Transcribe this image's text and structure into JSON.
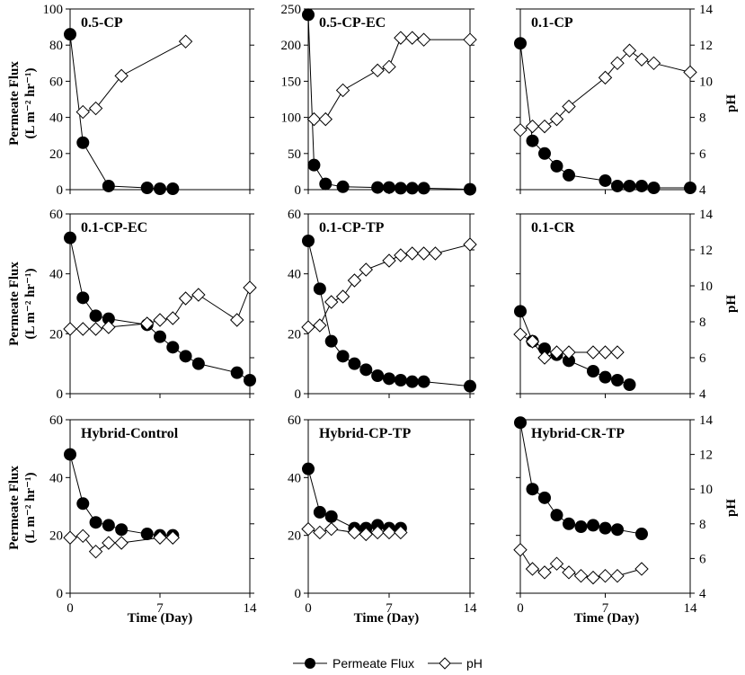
{
  "figure": {
    "y_label_left_line1": "Permeate Flux",
    "y_label_left_line2": "(L m⁻² hr⁻¹)",
    "y_label_right": "pH",
    "x_label": "Time (Day)",
    "legend": {
      "flux_label": "Permeate Flux",
      "ph_label": "pH"
    }
  },
  "chart_data": [
    {
      "type": "scatter",
      "title": "0.5-CP",
      "xlim": [
        0,
        14
      ],
      "ylim": [
        0,
        100
      ],
      "y2lim": [
        4,
        14
      ],
      "xticks": [
        0,
        7,
        14
      ],
      "yticks": [
        0,
        20,
        40,
        60,
        80,
        100
      ],
      "y2ticks": [
        4,
        6,
        8,
        10,
        12,
        14
      ],
      "series": [
        {
          "name": "Permeate Flux",
          "axis": "left",
          "x": [
            0,
            1,
            3,
            6,
            7,
            8
          ],
          "y": [
            86,
            26,
            2,
            1,
            0.5,
            0.5
          ]
        },
        {
          "name": "pH",
          "axis": "right",
          "x": [
            1,
            2,
            4,
            9
          ],
          "y": [
            8.3,
            8.5,
            10.3,
            12.2
          ]
        }
      ]
    },
    {
      "type": "scatter",
      "title": "0.5-CP-EC",
      "xlim": [
        0,
        14
      ],
      "ylim": [
        0,
        250
      ],
      "y2lim": [
        4,
        14
      ],
      "xticks": [
        0,
        7,
        14
      ],
      "yticks": [
        0,
        50,
        100,
        150,
        200,
        250
      ],
      "y2ticks": [
        4,
        6,
        8,
        10,
        12,
        14
      ],
      "series": [
        {
          "name": "Permeate Flux",
          "axis": "left",
          "x": [
            0,
            0.5,
            1.5,
            3,
            6,
            7,
            8,
            9,
            10,
            14
          ],
          "y": [
            242,
            34,
            8,
            4,
            3,
            3,
            2,
            2,
            2,
            0.5
          ]
        },
        {
          "name": "pH",
          "axis": "right",
          "x": [
            0.5,
            1.5,
            3,
            6,
            7,
            8,
            9,
            10,
            14
          ],
          "y": [
            7.9,
            7.9,
            9.5,
            10.6,
            10.8,
            12.4,
            12.4,
            12.3,
            12.3
          ]
        }
      ]
    },
    {
      "type": "scatter",
      "title": "0.1-CP",
      "xlim": [
        0,
        14
      ],
      "ylim": [
        0,
        100
      ],
      "y2lim": [
        4,
        14
      ],
      "xticks": [
        0,
        7,
        14
      ],
      "yticks": [
        0,
        20,
        40,
        60,
        80,
        100
      ],
      "y2ticks": [
        4,
        6,
        8,
        10,
        12,
        14
      ],
      "series": [
        {
          "name": "Permeate Flux",
          "axis": "left",
          "x": [
            0,
            1,
            2,
            3,
            4,
            7,
            8,
            9,
            10,
            11,
            14
          ],
          "y": [
            81,
            27,
            20,
            13,
            8,
            5,
            2,
            2,
            2,
            1,
            1
          ]
        },
        {
          "name": "pH",
          "axis": "right",
          "x": [
            0,
            1,
            2,
            3,
            4,
            7,
            8,
            9,
            10,
            11,
            14
          ],
          "y": [
            7.3,
            7.5,
            7.5,
            7.9,
            8.6,
            10.2,
            11,
            11.7,
            11.2,
            11,
            10.5
          ]
        }
      ]
    },
    {
      "type": "scatter",
      "title": "0.1-CP-EC",
      "xlim": [
        0,
        14
      ],
      "ylim": [
        0,
        60
      ],
      "y2lim": [
        4,
        14
      ],
      "xticks": [
        0,
        7,
        14
      ],
      "yticks": [
        0,
        20,
        40,
        60
      ],
      "y2ticks": [
        4,
        6,
        8,
        10,
        12,
        14
      ],
      "series": [
        {
          "name": "Permeate Flux",
          "axis": "left",
          "x": [
            0,
            1,
            2,
            3,
            6,
            7,
            8,
            9,
            10,
            13,
            14
          ],
          "y": [
            52,
            32,
            26,
            25,
            23,
            19,
            15.5,
            12.5,
            10,
            7,
            4.5
          ]
        },
        {
          "name": "pH",
          "axis": "right",
          "x": [
            0,
            1,
            2,
            3,
            6,
            7,
            8,
            9,
            10,
            13,
            14
          ],
          "y": [
            7.6,
            7.6,
            7.6,
            7.7,
            7.9,
            8.1,
            8.2,
            9.3,
            9.5,
            8.1,
            9.9
          ]
        }
      ]
    },
    {
      "type": "scatter",
      "title": "0.1-CP-TP",
      "xlim": [
        0,
        14
      ],
      "ylim": [
        0,
        60
      ],
      "y2lim": [
        4,
        14
      ],
      "xticks": [
        0,
        7,
        14
      ],
      "yticks": [
        0,
        20,
        40,
        60
      ],
      "y2ticks": [
        4,
        6,
        8,
        10,
        12,
        14
      ],
      "series": [
        {
          "name": "Permeate Flux",
          "axis": "left",
          "x": [
            0,
            1,
            2,
            3,
            4,
            5,
            6,
            7,
            8,
            9,
            10,
            14
          ],
          "y": [
            51,
            35,
            17.5,
            12.5,
            10,
            8,
            6,
            5,
            4.5,
            4,
            4,
            2.5
          ]
        },
        {
          "name": "pH",
          "axis": "right",
          "x": [
            0,
            1,
            2,
            3,
            4,
            5,
            7,
            8,
            9,
            10,
            11,
            14
          ],
          "y": [
            7.7,
            7.8,
            9.1,
            9.4,
            10.3,
            10.9,
            11.4,
            11.7,
            11.8,
            11.8,
            11.8,
            12.3
          ]
        }
      ]
    },
    {
      "type": "scatter",
      "title": "0.1-CR",
      "xlim": [
        0,
        14
      ],
      "ylim": [
        0,
        60
      ],
      "y2lim": [
        4,
        14
      ],
      "xticks": [
        0,
        7,
        14
      ],
      "yticks": [
        0,
        20,
        40,
        60
      ],
      "y2ticks": [
        4,
        6,
        8,
        10,
        12,
        14
      ],
      "series": [
        {
          "name": "Permeate Flux",
          "axis": "left",
          "x": [
            0,
            1,
            2,
            3,
            4,
            6,
            7,
            8,
            9
          ],
          "y": [
            27.5,
            17.5,
            15,
            13,
            11,
            7.5,
            5.5,
            4.5,
            3
          ]
        },
        {
          "name": "pH",
          "axis": "right",
          "x": [
            0,
            1,
            2,
            3,
            4,
            6,
            7,
            8
          ],
          "y": [
            7.3,
            6.9,
            6.0,
            6.3,
            6.3,
            6.3,
            6.3,
            6.3
          ]
        }
      ]
    },
    {
      "type": "scatter",
      "title": "Hybrid-Control",
      "xlim": [
        0,
        14
      ],
      "ylim": [
        0,
        60
      ],
      "y2lim": [
        4,
        14
      ],
      "xticks": [
        0,
        7,
        14
      ],
      "yticks": [
        0,
        20,
        40,
        60
      ],
      "y2ticks": [
        4,
        6,
        8,
        10,
        12,
        14
      ],
      "series": [
        {
          "name": "Permeate Flux",
          "axis": "left",
          "x": [
            0,
            1,
            2,
            3,
            4,
            6,
            7,
            8
          ],
          "y": [
            48,
            31,
            24.5,
            23.5,
            22,
            20.5,
            20,
            20
          ]
        },
        {
          "name": "pH",
          "axis": "right",
          "x": [
            0,
            1,
            2,
            3,
            4,
            7,
            8
          ],
          "y": [
            7.2,
            7.3,
            6.4,
            6.9,
            6.9,
            7.2,
            7.2
          ]
        }
      ]
    },
    {
      "type": "scatter",
      "title": "Hybrid-CP-TP",
      "xlim": [
        0,
        14
      ],
      "ylim": [
        0,
        60
      ],
      "y2lim": [
        4,
        14
      ],
      "xticks": [
        0,
        7,
        14
      ],
      "yticks": [
        0,
        20,
        40,
        60
      ],
      "y2ticks": [
        4,
        6,
        8,
        10,
        12,
        14
      ],
      "series": [
        {
          "name": "Permeate Flux",
          "axis": "left",
          "x": [
            0,
            1,
            2,
            4,
            5,
            6,
            7,
            8
          ],
          "y": [
            43,
            28,
            26.5,
            22.5,
            22.5,
            23.5,
            22.5,
            22.5
          ]
        },
        {
          "name": "pH",
          "axis": "right",
          "x": [
            0,
            1,
            2,
            4,
            5,
            6,
            7,
            8
          ],
          "y": [
            7.7,
            7.5,
            7.7,
            7.5,
            7.4,
            7.5,
            7.5,
            7.5
          ]
        }
      ]
    },
    {
      "type": "scatter",
      "title": "Hybrid-CR-TP",
      "xlim": [
        0,
        14
      ],
      "ylim": [
        0,
        60
      ],
      "y2lim": [
        4,
        14
      ],
      "xticks": [
        0,
        7,
        14
      ],
      "yticks": [
        0,
        20,
        40,
        60
      ],
      "y2ticks": [
        4,
        6,
        8,
        10,
        12,
        14
      ],
      "series": [
        {
          "name": "Permeate Flux",
          "axis": "left",
          "x": [
            0,
            1,
            2,
            3,
            4,
            5,
            6,
            7,
            8,
            10
          ],
          "y": [
            59,
            36,
            33,
            27,
            24,
            23,
            23.5,
            22.5,
            22,
            20.5
          ]
        },
        {
          "name": "pH",
          "axis": "right",
          "x": [
            0,
            1,
            2,
            3,
            4,
            5,
            6,
            7,
            8,
            10
          ],
          "y": [
            6.5,
            5.4,
            5.2,
            5.7,
            5.2,
            5.0,
            4.9,
            5.0,
            5.0,
            5.4
          ]
        }
      ]
    }
  ]
}
